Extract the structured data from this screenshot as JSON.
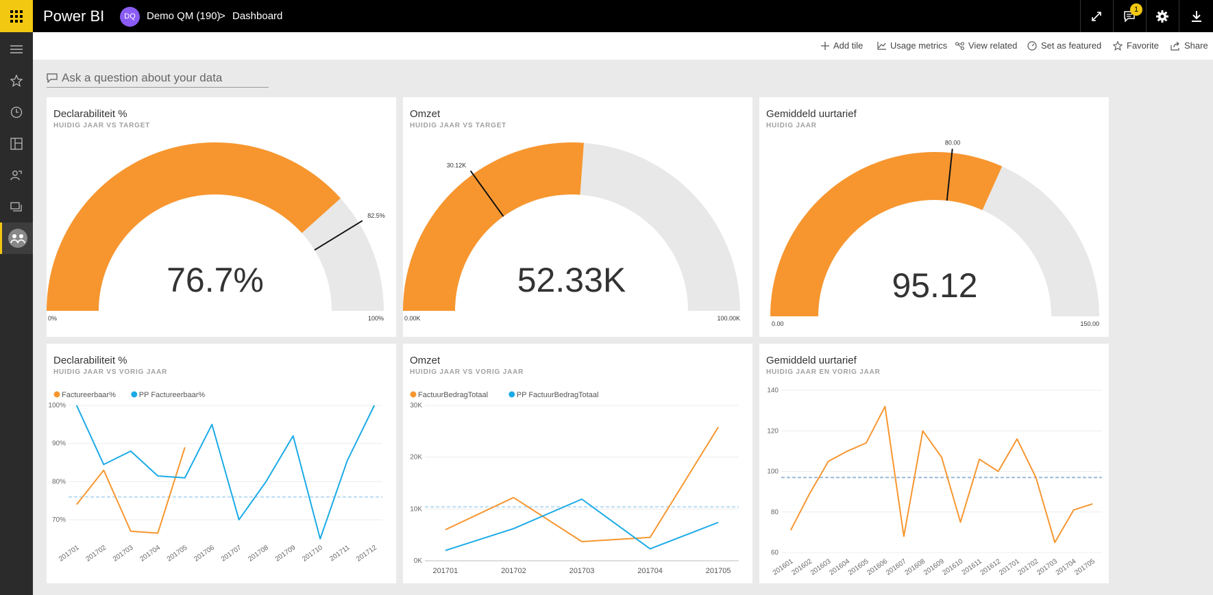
{
  "app": {
    "title": "Power BI"
  },
  "breadcrumb": {
    "workspace_initials": "DQ",
    "workspace": "Demo QM (190)",
    "separator": ">",
    "page": "Dashboard"
  },
  "notifications": {
    "count": "1"
  },
  "actions": {
    "add_tile": "Add tile",
    "usage_metrics": "Usage metrics",
    "view_related": "View related",
    "set_featured": "Set as featured",
    "favorite": "Favorite",
    "share": "Share"
  },
  "qa": {
    "placeholder": "Ask a question about your data"
  },
  "colors": {
    "orange": "#f7962f",
    "blue": "#1aaae6",
    "gauge_bg": "#e8e8e8",
    "brand": "#f2c811"
  },
  "tiles": {
    "gauge1": {
      "title": "Declarabiliteit %",
      "subtitle": "HUIDIG JAAR VS TARGET",
      "value_label": "76.7%",
      "min_label": "0%",
      "max_label": "100%",
      "target_label": "82.5%"
    },
    "gauge2": {
      "title": "Omzet",
      "subtitle": "HUIDIG JAAR VS TARGET",
      "value_label": "52.33K",
      "min_label": "0.00K",
      "max_label": "100.00K",
      "target_label": "30.12K"
    },
    "gauge3": {
      "title": "Gemiddeld uurtarief",
      "subtitle": "HUIDIG JAAR",
      "value_label": "95.12",
      "min_label": "0.00",
      "max_label": "150.00",
      "target_label": "80.00"
    },
    "line1": {
      "title": "Declarabiliteit %",
      "subtitle": "HUIDIG JAAR VS VORIG JAAR"
    },
    "line2": {
      "title": "Omzet",
      "subtitle": "HUIDIG JAAR VS VORIG JAAR"
    },
    "line3": {
      "title": "Gemiddeld uurtarief",
      "subtitle": "HUIDIG JAAR EN VORIG JAAR"
    }
  },
  "chart_data": [
    {
      "type": "gauge",
      "min": 0,
      "max": 100,
      "value": 76.7,
      "target": 82.5
    },
    {
      "type": "gauge",
      "min": 0,
      "max": 100,
      "value": 52.33,
      "target": 30.12
    },
    {
      "type": "gauge",
      "min": 0,
      "max": 150,
      "value": 95.12,
      "target": 80
    },
    {
      "type": "line",
      "categories": [
        "201701",
        "201702",
        "201703",
        "201704",
        "201705",
        "201706",
        "201707",
        "201708",
        "201709",
        "201710",
        "201711",
        "201712"
      ],
      "series": [
        {
          "name": "Factureerbaar%",
          "values": [
            74,
            83,
            67,
            66.5,
            89,
            null,
            null,
            null,
            null,
            null,
            null,
            null
          ]
        },
        {
          "name": "PP Factureerbaar%",
          "values": [
            100,
            84.5,
            88,
            81.5,
            81,
            95,
            70,
            80,
            92,
            64,
            85.5,
            100
          ]
        }
      ],
      "reference": 76,
      "ylim": [
        65,
        100
      ],
      "yticks": [
        70,
        80,
        90,
        100
      ],
      "ytick_labels": [
        "70%",
        "80%",
        "90%",
        "100%"
      ],
      "legend": "top-left"
    },
    {
      "type": "line",
      "categories": [
        "201701",
        "201702",
        "201703",
        "201704",
        "201705"
      ],
      "series": [
        {
          "name": "FactuurBedragTotaal",
          "values": [
            6000,
            12200,
            3700,
            4500,
            25800
          ]
        },
        {
          "name": "PP FactuurBedragTotaal",
          "values": [
            2000,
            6200,
            11900,
            2300,
            7400
          ]
        }
      ],
      "reference": 10400,
      "ylim": [
        0,
        30000
      ],
      "yticks": [
        0,
        10000,
        20000,
        30000
      ],
      "ytick_labels": [
        "0K",
        "10K",
        "20K",
        "30K"
      ],
      "legend": "top-left"
    },
    {
      "type": "line",
      "categories": [
        "201601",
        "201602",
        "201603",
        "201604",
        "201605",
        "201606",
        "201607",
        "201608",
        "201609",
        "201610",
        "201611",
        "201612",
        "201701",
        "201702",
        "201703",
        "201704",
        "201705"
      ],
      "series": [
        {
          "name": "",
          "values": [
            71,
            89,
            105,
            110,
            114,
            132,
            68,
            120,
            107,
            75,
            106,
            100,
            116,
            97,
            65,
            81,
            84
          ]
        }
      ],
      "reference": 97,
      "ylim": [
        60,
        140
      ],
      "yticks": [
        60,
        80,
        100,
        120,
        140
      ],
      "ytick_labels": [
        "60",
        "80",
        "100",
        "120",
        "140"
      ]
    }
  ]
}
